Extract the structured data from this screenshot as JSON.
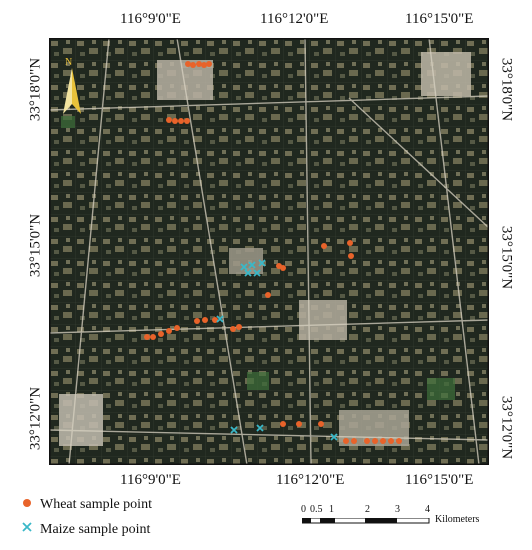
{
  "map": {
    "longitude_labels": [
      "116°9'0\"E",
      "116°12'0\"E",
      "116°15'0\"E"
    ],
    "latitude_labels": [
      "33°18'0\"N",
      "33°15'0\"N",
      "33°12'0\"N"
    ],
    "north_arrow": "north-arrow-icon",
    "colors": {
      "wheat": "#e8632a",
      "maize": "#3ab8c8",
      "frame": "#111111"
    }
  },
  "legend": {
    "wheat_label": "Wheat sample point",
    "maize_label": "Maize sample point"
  },
  "scale_bar": {
    "ticks": [
      "0",
      "0.5",
      "1",
      "2",
      "3",
      "4"
    ],
    "unit": "Kilometers"
  }
}
